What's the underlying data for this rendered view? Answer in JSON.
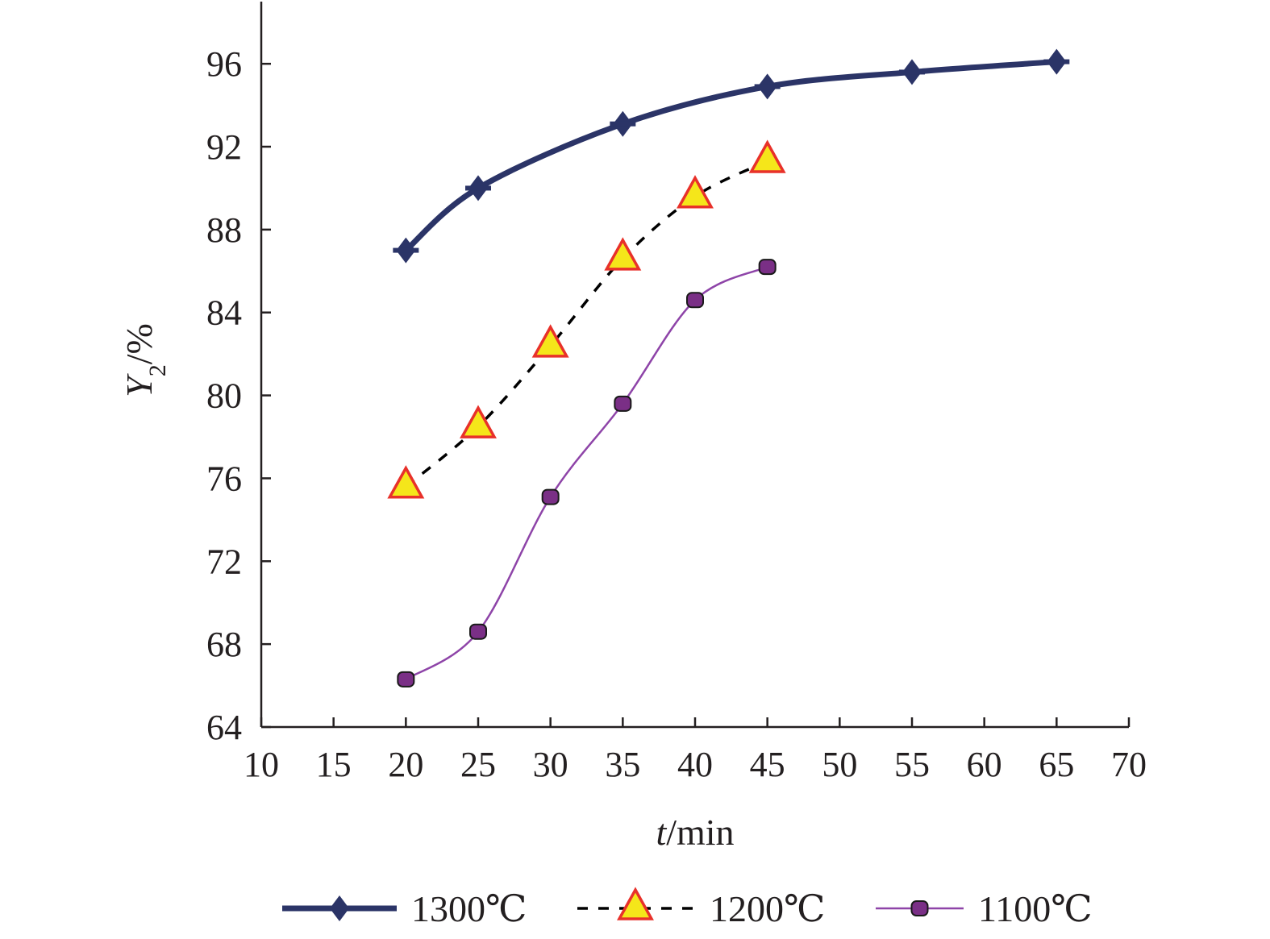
{
  "chart_data": {
    "type": "line",
    "title": "",
    "xlabel_var": "t",
    "xlabel_unit": "/min",
    "ylabel_var": "Y",
    "ylabel_sub": "2",
    "ylabel_unit": "/%",
    "xlim": [
      10,
      70
    ],
    "ylim": [
      64,
      99
    ],
    "x_ticks": [
      10,
      15,
      20,
      25,
      30,
      35,
      40,
      45,
      50,
      55,
      60,
      65,
      70
    ],
    "y_ticks": [
      64,
      68,
      72,
      76,
      80,
      84,
      88,
      92,
      96
    ],
    "grid": false,
    "legend_position": "bottom",
    "series": [
      {
        "name": "1300℃",
        "color": "#2b3467",
        "line_style": "solid-thick",
        "marker": "diamond-cross",
        "x": [
          20,
          25,
          35,
          45,
          55,
          65
        ],
        "y": [
          87.0,
          90.0,
          93.1,
          94.9,
          95.6,
          96.1
        ]
      },
      {
        "name": "1200℃",
        "color": "#000000",
        "line_style": "dashed",
        "marker": "triangle",
        "marker_fill": "#f5e61a",
        "marker_edge": "#e8312a",
        "x": [
          20,
          25,
          30,
          35,
          40,
          45
        ],
        "y": [
          75.6,
          78.5,
          82.4,
          86.6,
          89.6,
          91.3
        ]
      },
      {
        "name": "1100℃",
        "color": "#8e44a8",
        "line_style": "solid-thin",
        "marker": "square",
        "marker_fill": "#7a2f86",
        "x": [
          20,
          25,
          30,
          35,
          40,
          45
        ],
        "y": [
          66.3,
          68.6,
          75.1,
          79.6,
          84.6,
          86.2
        ]
      }
    ]
  }
}
